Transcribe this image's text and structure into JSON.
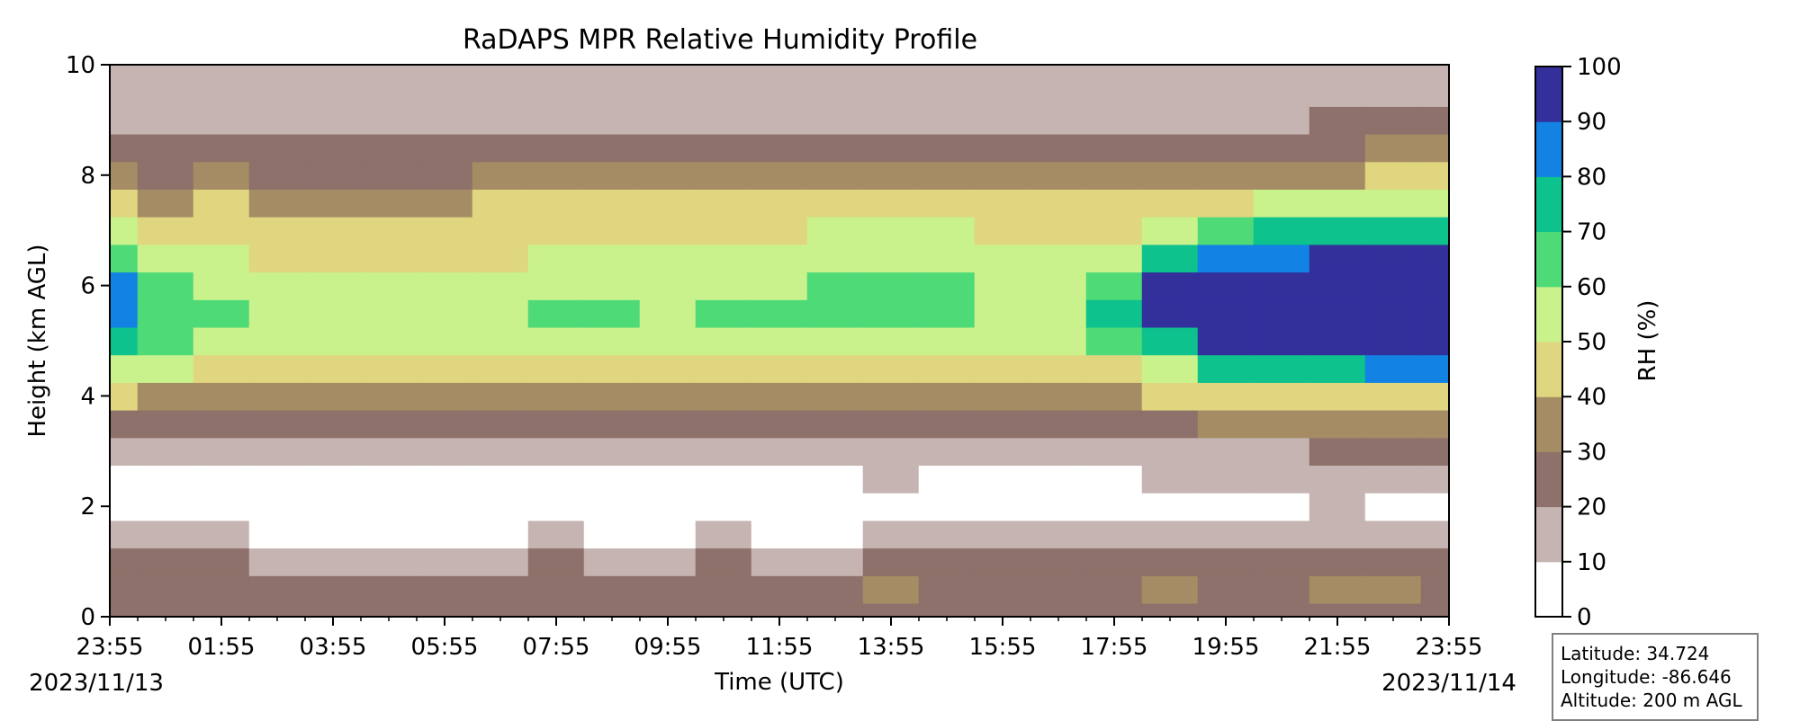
{
  "chart_data": {
    "type": "heatmap",
    "title": "RaDAPS MPR Relative Humidity Profile",
    "xlabel": "Time (UTC)",
    "ylabel": "Height (km AGL)",
    "colorbar_label": "RH (%)",
    "x_ticks": [
      "23:55",
      "01:55",
      "03:55",
      "05:55",
      "07:55",
      "09:55",
      "11:55",
      "13:55",
      "15:55",
      "17:55",
      "19:55",
      "21:55",
      "23:55"
    ],
    "x_date_start": "2023/11/13",
    "x_date_end": "2023/11/14",
    "y_ticks": [
      "0",
      "2",
      "4",
      "6",
      "8",
      "10"
    ],
    "ylim": [
      0,
      10
    ],
    "colorbar_ticks": [
      "0",
      "10",
      "20",
      "30",
      "40",
      "50",
      "60",
      "70",
      "80",
      "90",
      "100"
    ],
    "levels": [
      0,
      10,
      20,
      30,
      40,
      50,
      60,
      70,
      80,
      90,
      100
    ],
    "level_colors": [
      "#ffffff",
      "#c5b4b1",
      "#8e716a",
      "#a58c64",
      "#e0d680",
      "#c9f28c",
      "#4fda78",
      "#0ec28e",
      "#1283e3",
      "#332f9b"
    ],
    "time_hours": [
      0,
      1,
      2,
      3,
      4,
      5,
      6,
      7,
      8,
      9,
      10,
      11,
      12,
      13,
      14,
      15,
      16,
      17,
      18,
      19,
      20,
      21,
      22,
      23,
      24
    ],
    "heights_km": [
      0,
      0.5,
      1,
      1.5,
      2,
      2.5,
      3,
      3.5,
      4,
      4.5,
      5,
      5.5,
      6,
      6.5,
      7,
      7.5,
      8,
      8.5,
      9,
      9.5,
      10
    ],
    "rh_profile": [
      [
        22,
        28,
        22,
        12,
        8,
        8,
        14,
        25,
        40,
        55,
        75,
        85,
        80,
        62,
        55,
        45,
        32,
        25,
        18,
        15,
        14
      ],
      [
        20,
        28,
        20,
        10,
        7,
        8,
        14,
        25,
        38,
        50,
        60,
        68,
        62,
        55,
        45,
        38,
        28,
        22,
        16,
        14,
        13
      ],
      [
        21,
        25,
        20,
        10,
        7,
        7,
        13,
        24,
        35,
        45,
        55,
        62,
        58,
        50,
        45,
        40,
        30,
        24,
        18,
        14,
        13
      ],
      [
        20,
        25,
        18,
        9,
        6,
        7,
        12,
        22,
        33,
        42,
        50,
        58,
        55,
        46,
        42,
        38,
        28,
        22,
        16,
        14,
        13
      ],
      [
        21,
        24,
        18,
        9,
        6,
        7,
        12,
        22,
        32,
        42,
        50,
        55,
        55,
        45,
        42,
        38,
        28,
        22,
        16,
        14,
        13
      ],
      [
        20,
        24,
        18,
        9,
        6,
        7,
        12,
        22,
        32,
        42,
        50,
        57,
        55,
        45,
        42,
        38,
        28,
        20,
        16,
        14,
        13
      ],
      [
        21,
        24,
        18,
        9,
        6,
        7,
        12,
        22,
        32,
        42,
        50,
        55,
        55,
        45,
        42,
        38,
        28,
        20,
        16,
        14,
        13
      ],
      [
        21,
        26,
        18,
        9,
        6,
        7,
        12,
        24,
        34,
        44,
        52,
        58,
        55,
        48,
        44,
        40,
        30,
        22,
        16,
        14,
        13
      ],
      [
        22,
        28,
        20,
        10,
        7,
        8,
        14,
        25,
        36,
        46,
        55,
        60,
        58,
        50,
        46,
        42,
        32,
        24,
        18,
        15,
        14
      ],
      [
        21,
        26,
        18,
        9,
        6,
        8,
        14,
        25,
        36,
        46,
        55,
        60,
        55,
        50,
        48,
        44,
        32,
        24,
        18,
        15,
        14
      ],
      [
        22,
        26,
        18,
        9,
        6,
        8,
        14,
        25,
        36,
        46,
        55,
        58,
        58,
        50,
        48,
        44,
        32,
        24,
        18,
        15,
        14
      ],
      [
        24,
        28,
        20,
        10,
        7,
        8,
        14,
        25,
        36,
        46,
        55,
        60,
        58,
        50,
        48,
        44,
        32,
        24,
        18,
        15,
        14
      ],
      [
        22,
        26,
        18,
        9,
        6,
        8,
        14,
        25,
        36,
        46,
        55,
        60,
        58,
        52,
        48,
        44,
        32,
        24,
        18,
        15,
        14
      ],
      [
        22,
        26,
        18,
        9,
        6,
        8,
        14,
        25,
        36,
        46,
        56,
        62,
        60,
        55,
        50,
        45,
        32,
        24,
        18,
        15,
        14
      ],
      [
        25,
        30,
        22,
        12,
        8,
        10,
        16,
        28,
        38,
        48,
        58,
        64,
        62,
        56,
        52,
        45,
        32,
        24,
        18,
        15,
        14
      ],
      [
        22,
        26,
        20,
        10,
        7,
        8,
        14,
        24,
        34,
        46,
        56,
        62,
        60,
        56,
        52,
        46,
        32,
        24,
        18,
        15,
        14
      ],
      [
        22,
        26,
        20,
        10,
        7,
        8,
        14,
        24,
        34,
        44,
        52,
        58,
        56,
        52,
        48,
        42,
        30,
        22,
        16,
        14,
        13
      ],
      [
        22,
        28,
        22,
        12,
        8,
        8,
        14,
        24,
        34,
        44,
        50,
        55,
        55,
        50,
        46,
        40,
        30,
        22,
        16,
        14,
        13
      ],
      [
        22,
        28,
        22,
        12,
        8,
        9,
        16,
        26,
        36,
        48,
        62,
        72,
        68,
        56,
        48,
        40,
        30,
        22,
        16,
        14,
        13
      ],
      [
        22,
        30,
        22,
        12,
        8,
        10,
        18,
        28,
        40,
        58,
        78,
        92,
        90,
        72,
        56,
        44,
        32,
        22,
        16,
        14,
        13
      ],
      [
        22,
        28,
        22,
        12,
        8,
        10,
        18,
        30,
        42,
        70,
        90,
        95,
        95,
        85,
        65,
        48,
        34,
        24,
        18,
        15,
        14
      ],
      [
        22,
        28,
        22,
        12,
        8,
        10,
        18,
        30,
        44,
        72,
        92,
        97,
        96,
        88,
        70,
        50,
        36,
        26,
        18,
        15,
        14
      ],
      [
        24,
        30,
        24,
        14,
        12,
        14,
        20,
        32,
        46,
        76,
        92,
        97,
        97,
        90,
        72,
        52,
        38,
        28,
        20,
        16,
        15
      ],
      [
        24,
        30,
        24,
        13,
        9,
        10,
        20,
        32,
        48,
        80,
        95,
        98,
        98,
        92,
        75,
        55,
        40,
        30,
        22,
        18,
        17
      ],
      [
        22,
        28,
        22,
        12,
        8,
        10,
        20,
        32,
        48,
        80,
        95,
        98,
        98,
        92,
        75,
        55,
        40,
        30,
        22,
        18,
        17
      ]
    ],
    "station": {
      "latitude": "Latitude: 34.724",
      "longitude": "Longitude: -86.646",
      "altitude": "Altitude: 200 m AGL"
    }
  }
}
